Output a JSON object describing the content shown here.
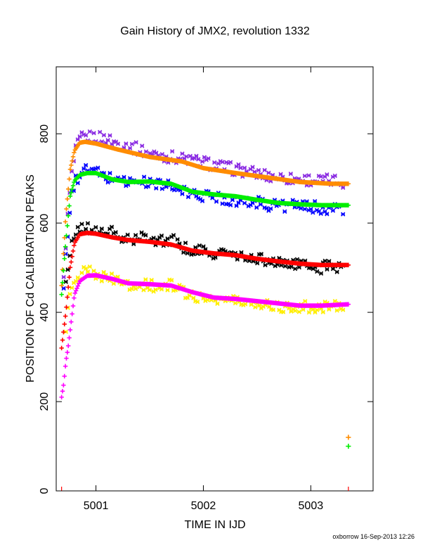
{
  "chart_data": {
    "type": "scatter",
    "title": "Gain History of JMX2, revolution 1332",
    "xlabel": "TIME IN IJD",
    "ylabel": "POSITION OF Cd CALIBRATION PEAKS",
    "xlim": [
      5000.63,
      5003.58
    ],
    "ylim": [
      0,
      950
    ],
    "x_ticks": [
      "5001",
      "5002",
      "5003"
    ],
    "y_ticks": [
      "0",
      "200",
      "400",
      "600",
      "800"
    ],
    "grid": false,
    "x_start": 5000.68,
    "x_end": 5003.35,
    "series": [
      {
        "marker": "x",
        "color": "#8a2be2",
        "kind": "scatter",
        "x": [
          5000.7,
          5000.72,
          5000.75,
          5000.78,
          5000.82,
          5000.86,
          5000.92,
          5001.0,
          5001.1,
          5001.2,
          5001.3,
          5001.4,
          5001.5,
          5001.6,
          5001.7,
          5001.8,
          5001.9,
          5002.0,
          5002.1,
          5002.2,
          5002.3,
          5002.4,
          5002.5,
          5002.6,
          5002.7,
          5002.8,
          5002.9,
          5003.0,
          5003.1,
          5003.2,
          5003.3
        ],
        "y": [
          470,
          560,
          650,
          720,
          770,
          790,
          793,
          792,
          790,
          778,
          773,
          765,
          755,
          752,
          748,
          745,
          740,
          737,
          730,
          725,
          720,
          716,
          710,
          706,
          703,
          700,
          698,
          697,
          695,
          695,
          693
        ]
      },
      {
        "marker": "x",
        "color": "#0000ff",
        "kind": "scatter",
        "x": [
          5000.7,
          5000.73,
          5000.76,
          5000.8,
          5000.85,
          5000.92,
          5001.0,
          5001.1,
          5001.2,
          5001.3,
          5001.4,
          5001.5,
          5001.6,
          5001.7,
          5001.8,
          5001.9,
          5002.0,
          5002.1,
          5002.2,
          5002.3,
          5002.4,
          5002.5,
          5002.6,
          5002.7,
          5002.8,
          5002.9,
          5003.0,
          5003.1,
          5003.2,
          5003.3
        ],
        "y": [
          450,
          560,
          640,
          690,
          710,
          720,
          715,
          700,
          705,
          690,
          695,
          688,
          690,
          680,
          670,
          665,
          660,
          662,
          655,
          650,
          645,
          648,
          640,
          642,
          638,
          637,
          635,
          635,
          632,
          630
        ]
      },
      {
        "marker": "x",
        "color": "#000000",
        "kind": "scatter",
        "x": [
          5000.72,
          5000.76,
          5000.8,
          5000.85,
          5000.92,
          5001.0,
          5001.1,
          5001.2,
          5001.3,
          5001.4,
          5001.5,
          5001.6,
          5001.7,
          5001.8,
          5001.9,
          5002.0,
          5002.1,
          5002.2,
          5002.3,
          5002.4,
          5002.5,
          5002.6,
          5002.7,
          5002.8,
          5002.9,
          5003.0,
          5003.1,
          5003.2,
          5003.3
        ],
        "y": [
          470,
          540,
          570,
          585,
          590,
          580,
          585,
          570,
          560,
          565,
          570,
          560,
          565,
          545,
          540,
          535,
          530,
          535,
          525,
          520,
          522,
          515,
          510,
          512,
          505,
          502,
          500,
          505,
          500
        ]
      },
      {
        "marker": "x",
        "color": "#ffee00",
        "kind": "scatter",
        "x": [
          5000.72,
          5000.76,
          5000.8,
          5000.85,
          5000.92,
          5001.0,
          5001.1,
          5001.2,
          5001.3,
          5001.4,
          5001.5,
          5001.6,
          5001.7,
          5001.8,
          5001.9,
          5002.0,
          5002.1,
          5002.2,
          5002.3,
          5002.4,
          5002.5,
          5002.6,
          5002.7,
          5002.8,
          5002.9,
          5003.0,
          5003.1,
          5003.2,
          5003.3
        ],
        "y": [
          370,
          440,
          470,
          485,
          490,
          488,
          475,
          470,
          460,
          465,
          460,
          455,
          462,
          445,
          440,
          430,
          432,
          428,
          425,
          420,
          422,
          418,
          415,
          410,
          412,
          410,
          412,
          415,
          418
        ]
      },
      {
        "marker": "+",
        "color": "#ff8c00",
        "kind": "curve",
        "x": [
          5000.68,
          5000.72,
          5000.76,
          5000.8,
          5000.85,
          5000.9,
          5001.0,
          5001.2,
          5001.5,
          5001.8,
          5002.0,
          5002.3,
          5002.6,
          5002.9,
          5003.2,
          5003.35
        ],
        "y": [
          460,
          620,
          720,
          762,
          780,
          782,
          778,
          765,
          748,
          738,
          723,
          712,
          702,
          692,
          688,
          688
        ]
      },
      {
        "marker": "+",
        "color": "#00ee00",
        "kind": "curve",
        "x": [
          5000.68,
          5000.72,
          5000.76,
          5000.8,
          5000.85,
          5000.92,
          5001.0,
          5001.15,
          5001.3,
          5001.5,
          5001.7,
          5001.9,
          5002.1,
          5002.3,
          5002.5,
          5002.7,
          5002.9,
          5003.1,
          5003.35
        ],
        "y": [
          440,
          560,
          660,
          695,
          708,
          712,
          712,
          698,
          692,
          693,
          688,
          670,
          664,
          660,
          652,
          645,
          642,
          640,
          640
        ]
      },
      {
        "marker": "+",
        "color": "#ff0000",
        "kind": "curve",
        "x": [
          5000.68,
          5000.72,
          5000.76,
          5000.8,
          5000.85,
          5000.92,
          5001.0,
          5001.15,
          5001.3,
          5001.5,
          5001.7,
          5001.9,
          5002.1,
          5002.3,
          5002.5,
          5002.7,
          5002.9,
          5003.1,
          5003.35
        ],
        "y": [
          320,
          400,
          500,
          555,
          575,
          578,
          576,
          568,
          562,
          558,
          552,
          538,
          532,
          528,
          520,
          514,
          509,
          506,
          506
        ]
      },
      {
        "marker": "+",
        "color": "#ff00ff",
        "kind": "curve",
        "x": [
          5000.68,
          5000.7,
          5000.72,
          5000.74,
          5000.77,
          5000.8,
          5000.85,
          5000.92,
          5001.0,
          5001.15,
          5001.3,
          5001.5,
          5001.7,
          5001.9,
          5002.1,
          5002.3,
          5002.5,
          5002.7,
          5002.9,
          5003.1,
          5003.35
        ],
        "y": [
          210,
          240,
          290,
          320,
          380,
          440,
          470,
          482,
          483,
          475,
          465,
          463,
          460,
          445,
          433,
          430,
          425,
          420,
          415,
          415,
          418
        ]
      }
    ],
    "outliers": [
      {
        "x": 5003.35,
        "y": 120,
        "color": "#ff8c00"
      },
      {
        "x": 5003.35,
        "y": 100,
        "color": "#00ee00"
      }
    ]
  },
  "footer": "oxborrow 16-Sep-2013 12:26"
}
